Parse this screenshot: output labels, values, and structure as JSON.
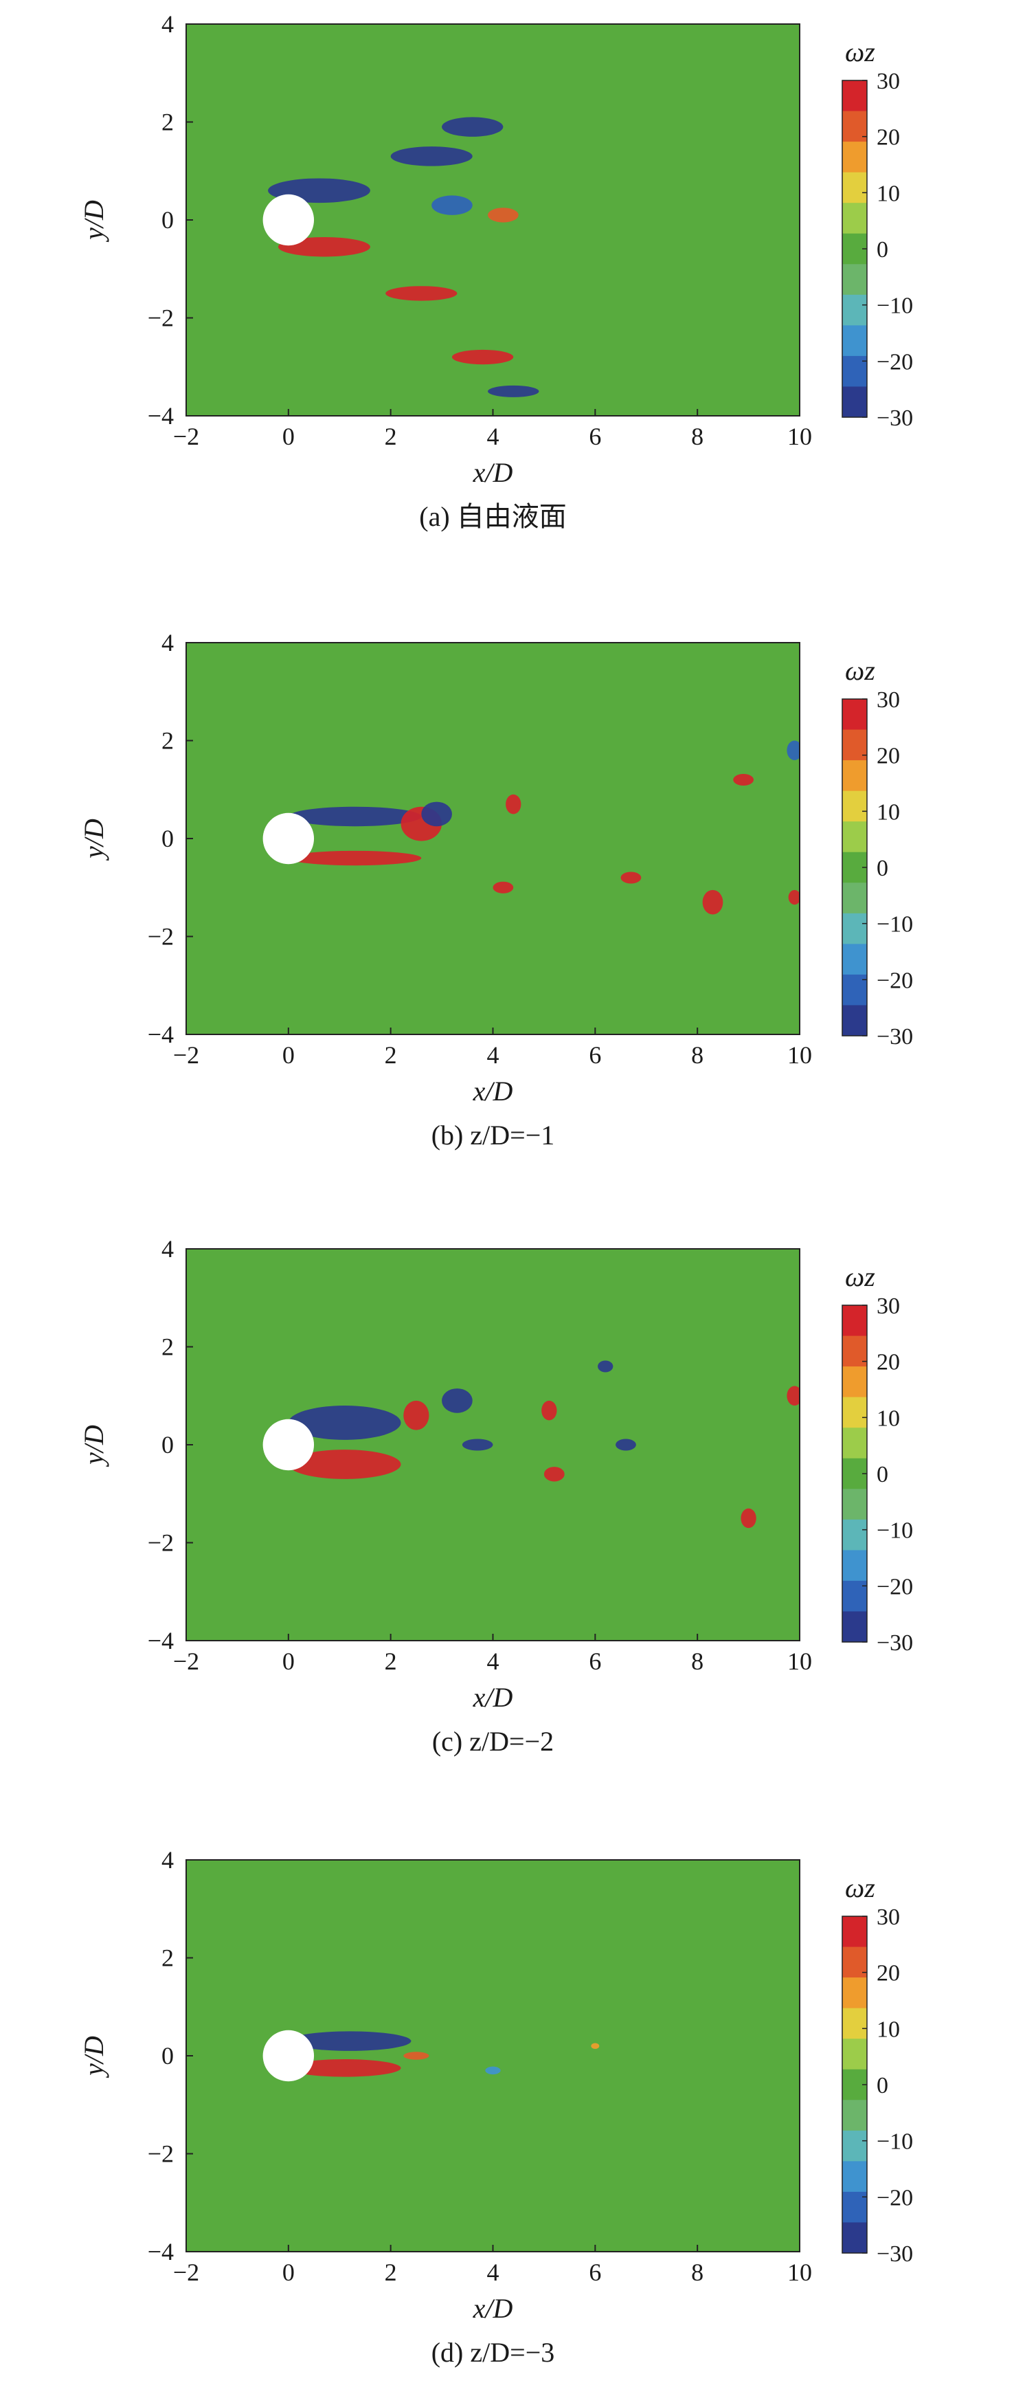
{
  "chart_data": [
    {
      "type": "heatmap",
      "panel": "a",
      "caption": "(a) 自由液面",
      "xlabel": "x/D",
      "ylabel": "y/D",
      "xlim": [
        -2,
        10
      ],
      "ylim": [
        -4,
        4
      ],
      "xticks": [
        "−2",
        "0",
        "2",
        "4",
        "6",
        "8",
        "10"
      ],
      "yticks": [
        "−4",
        "−2",
        "0",
        "2",
        "4"
      ],
      "colorbar": {
        "label": "ωz",
        "range": [
          -30,
          30
        ],
        "ticks": [
          "30",
          "20",
          "10",
          "0",
          "−10",
          "−20",
          "−30"
        ]
      },
      "cylinder": {
        "x": 0,
        "y": 0,
        "diameter": 1
      },
      "background_value": 0,
      "features": [
        {
          "x": 0.6,
          "y": 0.6,
          "value": -30,
          "rx": 1.0,
          "ry": 0.25
        },
        {
          "x": 0.7,
          "y": -0.55,
          "value": 30,
          "rx": 0.9,
          "ry": 0.2
        },
        {
          "x": 2.8,
          "y": 1.3,
          "value": -25,
          "rx": 0.8,
          "ry": 0.2
        },
        {
          "x": 3.6,
          "y": 1.9,
          "value": -25,
          "rx": 0.6,
          "ry": 0.2
        },
        {
          "x": 2.6,
          "y": -1.5,
          "value": 25,
          "rx": 0.7,
          "ry": 0.15
        },
        {
          "x": 3.8,
          "y": -2.8,
          "value": 25,
          "rx": 0.6,
          "ry": 0.15
        },
        {
          "x": 4.4,
          "y": -3.5,
          "value": -25,
          "rx": 0.5,
          "ry": 0.12
        },
        {
          "x": 3.2,
          "y": 0.3,
          "value": -20,
          "rx": 0.4,
          "ry": 0.2
        },
        {
          "x": 4.2,
          "y": 0.1,
          "value": 20,
          "rx": 0.3,
          "ry": 0.15
        }
      ]
    },
    {
      "type": "heatmap",
      "panel": "b",
      "caption": "(b) z/D=−1",
      "xlabel": "x/D",
      "ylabel": "y/D",
      "xlim": [
        -2,
        10
      ],
      "ylim": [
        -4,
        4
      ],
      "xticks": [
        "−2",
        "0",
        "2",
        "4",
        "6",
        "8",
        "10"
      ],
      "yticks": [
        "−4",
        "−2",
        "0",
        "2",
        "4"
      ],
      "colorbar": {
        "label": "ωz",
        "range": [
          -30,
          30
        ],
        "ticks": [
          "30",
          "20",
          "10",
          "0",
          "−10",
          "−20",
          "−30"
        ]
      },
      "cylinder": {
        "x": 0,
        "y": 0,
        "diameter": 1
      },
      "background_value": 0,
      "features": [
        {
          "x": 1.3,
          "y": 0.45,
          "value": -30,
          "rx": 1.3,
          "ry": 0.2
        },
        {
          "x": 1.3,
          "y": -0.4,
          "value": 30,
          "rx": 1.3,
          "ry": 0.15
        },
        {
          "x": 2.6,
          "y": 0.3,
          "value": 25,
          "rx": 0.4,
          "ry": 0.35
        },
        {
          "x": 2.9,
          "y": 0.5,
          "value": -25,
          "rx": 0.3,
          "ry": 0.25
        },
        {
          "x": 4.4,
          "y": 0.7,
          "value": 25,
          "rx": 0.15,
          "ry": 0.2
        },
        {
          "x": 4.2,
          "y": -1.0,
          "value": 28,
          "rx": 0.2,
          "ry": 0.12
        },
        {
          "x": 6.7,
          "y": -0.8,
          "value": 28,
          "rx": 0.2,
          "ry": 0.12
        },
        {
          "x": 8.3,
          "y": -1.3,
          "value": 25,
          "rx": 0.2,
          "ry": 0.25
        },
        {
          "x": 8.9,
          "y": 1.2,
          "value": 25,
          "rx": 0.2,
          "ry": 0.12
        },
        {
          "x": 9.9,
          "y": 1.8,
          "value": -20,
          "rx": 0.15,
          "ry": 0.2
        },
        {
          "x": 9.9,
          "y": -1.2,
          "value": 28,
          "rx": 0.12,
          "ry": 0.15
        }
      ]
    },
    {
      "type": "heatmap",
      "panel": "c",
      "caption": "(c) z/D=−2",
      "xlabel": "x/D",
      "ylabel": "y/D",
      "xlim": [
        -2,
        10
      ],
      "ylim": [
        -4,
        4
      ],
      "xticks": [
        "−2",
        "0",
        "2",
        "4",
        "6",
        "8",
        "10"
      ],
      "yticks": [
        "−4",
        "−2",
        "0",
        "2",
        "4"
      ],
      "colorbar": {
        "label": "ωz",
        "range": [
          -30,
          30
        ],
        "ticks": [
          "30",
          "20",
          "10",
          "0",
          "−10",
          "−20",
          "−30"
        ]
      },
      "cylinder": {
        "x": 0,
        "y": 0,
        "diameter": 1
      },
      "background_value": 0,
      "features": [
        {
          "x": 1.1,
          "y": 0.45,
          "value": -30,
          "rx": 1.1,
          "ry": 0.35
        },
        {
          "x": 1.1,
          "y": -0.4,
          "value": 30,
          "rx": 1.1,
          "ry": 0.3
        },
        {
          "x": 2.5,
          "y": 0.6,
          "value": 28,
          "rx": 0.25,
          "ry": 0.3
        },
        {
          "x": 3.3,
          "y": 0.9,
          "value": -30,
          "rx": 0.3,
          "ry": 0.25
        },
        {
          "x": 3.7,
          "y": 0.0,
          "value": -25,
          "rx": 0.3,
          "ry": 0.12
        },
        {
          "x": 5.1,
          "y": 0.7,
          "value": 25,
          "rx": 0.15,
          "ry": 0.2
        },
        {
          "x": 5.2,
          "y": -0.6,
          "value": 28,
          "rx": 0.2,
          "ry": 0.15
        },
        {
          "x": 6.2,
          "y": 1.6,
          "value": -25,
          "rx": 0.15,
          "ry": 0.12
        },
        {
          "x": 6.6,
          "y": 0.0,
          "value": -25,
          "rx": 0.2,
          "ry": 0.12
        },
        {
          "x": 9.0,
          "y": -1.5,
          "value": 28,
          "rx": 0.15,
          "ry": 0.2
        },
        {
          "x": 9.9,
          "y": 1.0,
          "value": 28,
          "rx": 0.15,
          "ry": 0.2
        }
      ]
    },
    {
      "type": "heatmap",
      "panel": "d",
      "caption": "(d) z/D=−3",
      "xlabel": "x/D",
      "ylabel": "y/D",
      "xlim": [
        -2,
        10
      ],
      "ylim": [
        -4,
        4
      ],
      "xticks": [
        "−2",
        "0",
        "2",
        "4",
        "6",
        "8",
        "10"
      ],
      "yticks": [
        "−4",
        "−2",
        "0",
        "2",
        "4"
      ],
      "colorbar": {
        "label": "ωz",
        "range": [
          -30,
          30
        ],
        "ticks": [
          "30",
          "20",
          "10",
          "0",
          "−10",
          "−20",
          "−30"
        ]
      },
      "cylinder": {
        "x": 0,
        "y": 0,
        "diameter": 1
      },
      "background_value": 0,
      "features": [
        {
          "x": 1.2,
          "y": 0.3,
          "value": -30,
          "rx": 1.2,
          "ry": 0.2
        },
        {
          "x": 1.1,
          "y": -0.25,
          "value": 30,
          "rx": 1.1,
          "ry": 0.18
        },
        {
          "x": 2.5,
          "y": 0.0,
          "value": 20,
          "rx": 0.25,
          "ry": 0.08
        },
        {
          "x": 4.0,
          "y": -0.3,
          "value": -15,
          "rx": 0.15,
          "ry": 0.08
        },
        {
          "x": 6.0,
          "y": 0.2,
          "value": 15,
          "rx": 0.08,
          "ry": 0.06
        }
      ]
    }
  ]
}
